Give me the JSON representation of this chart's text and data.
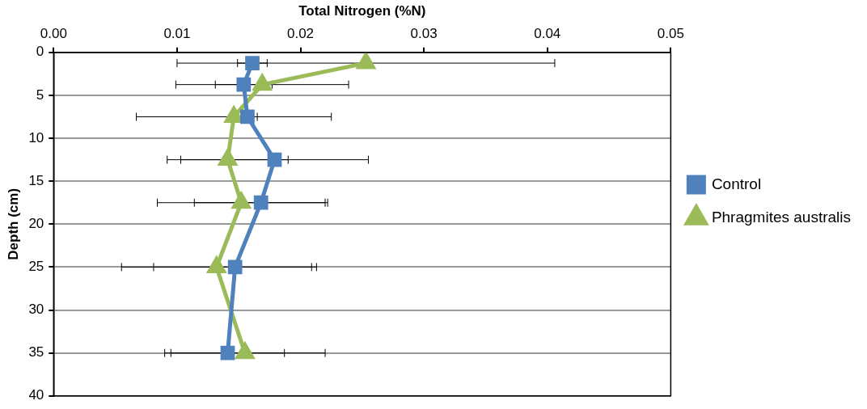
{
  "chart_data": {
    "type": "line",
    "orientation": "horizontal",
    "xlabel": "Total Nitrogen (%N)",
    "ylabel": "Depth (cm)",
    "x": [
      1.25,
      3.75,
      7.5,
      12.5,
      17.5,
      25,
      35
    ],
    "series": [
      {
        "name": "Control",
        "color": "#4f81bd",
        "marker": "square",
        "values": [
          0.0161,
          0.0154,
          0.0157,
          0.0179,
          0.0168,
          0.0147,
          0.0141
        ],
        "errors": [
          0.0012,
          0.0023,
          0.0008,
          0.0076,
          0.0054,
          0.0066,
          0.0046
        ]
      },
      {
        "name": "Phragmites australis",
        "color": "#9bbb59",
        "marker": "triangle",
        "values": [
          0.0253,
          0.0169,
          0.0146,
          0.0141,
          0.0152,
          0.0132,
          0.0155
        ],
        "errors": [
          0.0153,
          0.007,
          0.0079,
          0.0049,
          0.0068,
          0.0077,
          0.0065
        ]
      }
    ],
    "xlim": [
      0,
      0.05
    ],
    "xticks": [
      {
        "value": 0,
        "label": "0.00"
      },
      {
        "value": 0.01,
        "label": "0.01"
      },
      {
        "value": 0.02,
        "label": "0.02"
      },
      {
        "value": 0.03,
        "label": "0.03"
      },
      {
        "value": 0.04,
        "label": "0.04"
      },
      {
        "value": 0.05,
        "label": "0.05"
      }
    ],
    "ylim": [
      40,
      0
    ],
    "yticks": [
      0,
      5,
      10,
      15,
      20,
      25,
      30,
      35,
      40
    ],
    "grid": "y",
    "legend": "right",
    "line_style": "solid"
  }
}
